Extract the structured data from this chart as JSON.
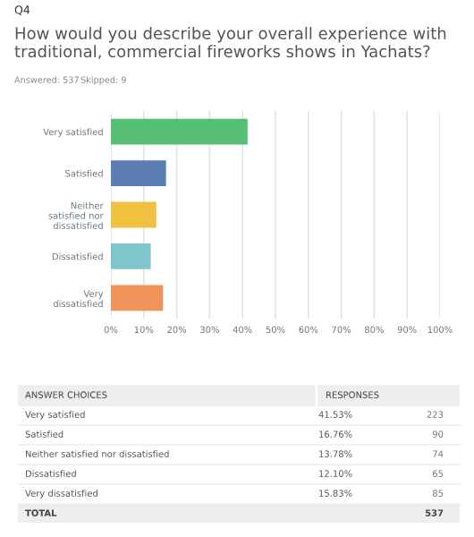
{
  "chart_data": {
    "type": "bar",
    "orientation": "horizontal",
    "title": "How would you describe your overall experience with traditional, commercial fireworks shows in Yachats?",
    "categories": [
      "Very satisfied",
      "Satisfied",
      "Neither\nsatisfied nor\ndissatisfied",
      "Dissatisfied",
      "Very\ndissatisfied"
    ],
    "values": [
      41.53,
      16.76,
      13.78,
      12.1,
      15.83
    ],
    "colors": [
      "#57bf75",
      "#5b7fb5",
      "#f0c040",
      "#7fc6cc",
      "#f0935a"
    ],
    "xlim": [
      0,
      100
    ],
    "xticks": [
      {
        "value": 0,
        "label": "0%"
      },
      {
        "value": 10,
        "label": "10%"
      },
      {
        "value": 20,
        "label": "20%"
      },
      {
        "value": 30,
        "label": "30%"
      },
      {
        "value": 40,
        "label": "40%"
      },
      {
        "value": 50,
        "label": "50%"
      },
      {
        "value": 60,
        "label": "60%"
      },
      {
        "value": 70,
        "label": "70%"
      },
      {
        "value": 80,
        "label": "80%"
      },
      {
        "value": 90,
        "label": "90%"
      },
      {
        "value": 100,
        "label": "100%"
      }
    ],
    "grid": "x",
    "legend": false,
    "annotations": [
      "Q4",
      "Answered: 537",
      "Skipped: 9",
      "ANSWER CHOICES",
      "RESPONSES",
      "223",
      "90",
      "74",
      "65",
      "85",
      "TOTAL",
      "537",
      "41.53%",
      "16.76%",
      "13.78%",
      "12.10%",
      "15.83%"
    ]
  }
}
